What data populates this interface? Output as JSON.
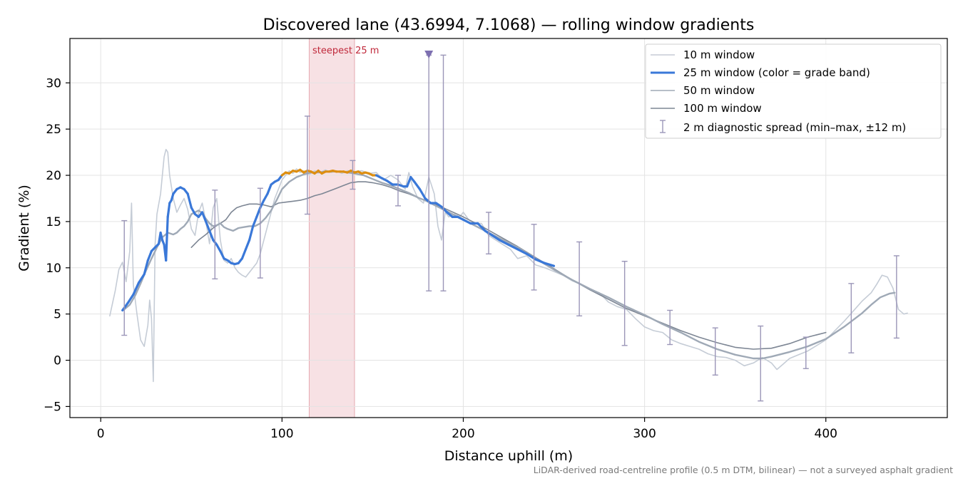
{
  "chart_data": {
    "type": "line",
    "title": "Discovered lane (43.6994, 7.1068) — rolling window gradients",
    "xlabel": "Distance uphill (m)",
    "ylabel": "Gradient (%)",
    "xlim": [
      -17,
      467
    ],
    "ylim": [
      -6.2,
      34.8
    ],
    "xticks": [
      0,
      100,
      200,
      300,
      400
    ],
    "yticks": [
      -5,
      0,
      5,
      10,
      15,
      20,
      25,
      30
    ],
    "grid": true,
    "legend_position": "top-right",
    "footnote": "LiDAR-derived road-centreline profile (0.5 m DTM, bilinear) — not a surveyed asphalt gradient",
    "colors": {
      "w10": "#c5ccd6",
      "w25": "#3a78d8",
      "w25_steep": "#dd8e10",
      "w50": "#9fa9b6",
      "w100": "#7d8694",
      "errbar": "#9b96b8",
      "band": "#f5dadd",
      "band_label": "#c0283a",
      "marker": "#7d6fb0"
    },
    "steepest_band": {
      "label": "steepest 25 m",
      "x_start": 115,
      "x_end": 140
    },
    "marker_point": {
      "x": 181,
      "y": 33.1
    },
    "series": [
      {
        "key": "w10",
        "name": "10 m window",
        "x": [
          5,
          8,
          10,
          12,
          14,
          16,
          17,
          18,
          20,
          22,
          24,
          26,
          27,
          28,
          29,
          30,
          31,
          33,
          34,
          35,
          36,
          37,
          38,
          40,
          42,
          44,
          46,
          48,
          50,
          52,
          54,
          56,
          58,
          60,
          62,
          64,
          66,
          68,
          70,
          72,
          74,
          76,
          78,
          80,
          82,
          84,
          86,
          88,
          90,
          92,
          94,
          96,
          98,
          100,
          102,
          104,
          106,
          108,
          110,
          112,
          115,
          118,
          121,
          124,
          127,
          130,
          133,
          136,
          140,
          144,
          148,
          152,
          156,
          160,
          164,
          168,
          170,
          172,
          175,
          178,
          181,
          184,
          186,
          188,
          190,
          192,
          195,
          198,
          200,
          203,
          206,
          210,
          214,
          218,
          222,
          226,
          230,
          235,
          240,
          245,
          250,
          255,
          260,
          265,
          270,
          275,
          280,
          285,
          290,
          295,
          300,
          305,
          310,
          315,
          320,
          325,
          330,
          335,
          340,
          345,
          350,
          355,
          360,
          365,
          370,
          373,
          376,
          380,
          385,
          390,
          395,
          400,
          405,
          410,
          415,
          420,
          425,
          428,
          431,
          434,
          437,
          440,
          443,
          445
        ],
        "y": [
          4.8,
          7.5,
          9.8,
          10.6,
          8.5,
          11.8,
          17.0,
          8.2,
          5.0,
          2.2,
          1.5,
          3.8,
          6.5,
          4.5,
          -2.3,
          12.5,
          15.8,
          18.0,
          20.0,
          22.0,
          22.8,
          22.5,
          20.0,
          17.5,
          16.0,
          16.8,
          17.5,
          16.3,
          14.2,
          13.5,
          16.0,
          17.0,
          15.0,
          12.6,
          16.5,
          17.5,
          13.0,
          10.8,
          10.5,
          11.0,
          10.0,
          9.5,
          9.2,
          9.0,
          9.5,
          10.0,
          10.5,
          11.5,
          13.0,
          14.5,
          16.0,
          17.5,
          18.5,
          19.5,
          20.0,
          20.5,
          20.2,
          20.7,
          20.3,
          20.5,
          20.1,
          20.5,
          20.3,
          20.6,
          20.3,
          20.5,
          20.2,
          20.5,
          20.4,
          20.5,
          20.2,
          20.3,
          19.5,
          20.0,
          19.5,
          18.5,
          20.3,
          18.8,
          17.5,
          17.0,
          19.8,
          18.0,
          14.5,
          13.0,
          16.0,
          15.5,
          15.8,
          15.5,
          16.0,
          15.2,
          14.8,
          14.8,
          13.5,
          13.0,
          12.5,
          12.0,
          11.0,
          11.3,
          10.3,
          10.0,
          9.6,
          9.2,
          8.6,
          8.2,
          7.6,
          7.3,
          6.3,
          5.8,
          5.5,
          4.5,
          3.6,
          3.2,
          3.0,
          2.2,
          1.8,
          1.5,
          1.2,
          0.7,
          0.4,
          0.3,
          0.0,
          -0.6,
          -0.3,
          0.3,
          -0.3,
          -1.0,
          -0.5,
          0.2,
          0.6,
          1.0,
          1.6,
          2.2,
          3.2,
          4.2,
          5.3,
          6.4,
          7.3,
          8.2,
          9.2,
          9.0,
          7.8,
          5.5,
          5.0,
          5.1
        ]
      },
      {
        "key": "w25",
        "name": "25 m window (color = grade band)",
        "x": [
          12,
          15,
          18,
          21,
          24,
          26,
          28,
          30,
          32,
          33,
          34,
          35,
          36,
          37,
          38,
          39,
          40,
          42,
          44,
          46,
          48,
          50,
          52,
          54,
          56,
          58,
          60,
          62,
          64,
          66,
          68,
          70,
          72,
          74,
          76,
          78,
          80,
          82,
          84,
          86,
          88,
          90,
          92,
          94,
          96,
          98,
          100,
          102,
          104,
          106,
          108,
          110,
          112,
          114,
          116,
          118,
          120,
          122,
          124,
          126,
          128,
          130,
          132,
          134,
          136,
          138,
          140,
          142,
          144,
          146,
          148,
          150,
          152,
          155,
          158,
          161,
          164,
          167,
          169,
          171,
          173,
          176,
          179,
          182,
          185,
          188,
          191,
          194,
          197,
          200,
          204,
          208,
          212,
          216,
          220,
          225,
          230,
          235,
          240,
          245,
          250
        ],
        "y": [
          5.4,
          6.2,
          7.1,
          8.4,
          9.3,
          10.8,
          11.8,
          12.2,
          12.6,
          13.8,
          13.0,
          12.5,
          10.8,
          15.5,
          17.0,
          17.3,
          18.0,
          18.5,
          18.7,
          18.5,
          18.0,
          16.5,
          15.8,
          15.5,
          16.0,
          15.0,
          14.0,
          13.0,
          12.5,
          11.8,
          11.0,
          10.8,
          10.5,
          10.4,
          10.5,
          11.0,
          12.0,
          13.0,
          14.5,
          15.5,
          16.5,
          17.3,
          18.0,
          19.0,
          19.3,
          19.5,
          20.0,
          20.3,
          20.2,
          20.5,
          20.4,
          20.6,
          20.3,
          20.5,
          20.4,
          20.2,
          20.5,
          20.2,
          20.4,
          20.4,
          20.5,
          20.4,
          20.4,
          20.4,
          20.3,
          20.5,
          20.3,
          20.4,
          20.2,
          20.3,
          20.2,
          20.0,
          20.0,
          19.7,
          19.4,
          19.0,
          19.0,
          18.8,
          18.8,
          19.8,
          19.3,
          18.5,
          17.5,
          17.0,
          17.0,
          16.6,
          16.0,
          15.5,
          15.5,
          15.2,
          14.8,
          14.8,
          14.0,
          13.5,
          13.0,
          12.5,
          12.0,
          11.5,
          10.9,
          10.5,
          10.2
        ]
      },
      {
        "key": "w50",
        "name": "50 m window",
        "x": [
          13,
          16,
          19,
          22,
          25,
          28,
          31,
          34,
          37,
          40,
          42,
          44,
          46,
          48,
          50,
          52,
          54,
          56,
          58,
          60,
          62,
          64,
          66,
          68,
          70,
          73,
          76,
          79,
          82,
          85,
          88,
          91,
          94,
          97,
          100,
          104,
          108,
          112,
          116,
          120,
          124,
          128,
          132,
          136,
          140,
          145,
          150,
          155,
          160,
          165,
          170,
          175,
          180,
          185,
          190,
          195,
          200,
          210,
          220,
          230,
          240,
          250,
          260,
          270,
          280,
          290,
          300,
          310,
          320,
          330,
          340,
          350,
          360,
          365,
          370,
          380,
          390,
          400,
          410,
          420,
          425,
          430,
          435,
          438
        ],
        "y": [
          5.5,
          6.0,
          7.0,
          8.3,
          9.7,
          11.0,
          12.2,
          13.3,
          13.8,
          13.6,
          13.8,
          14.2,
          14.5,
          15.0,
          15.8,
          16.0,
          16.2,
          15.9,
          15.3,
          14.8,
          14.5,
          14.6,
          14.8,
          14.4,
          14.2,
          14.0,
          14.3,
          14.4,
          14.5,
          14.5,
          14.8,
          15.4,
          16.2,
          17.3,
          18.5,
          19.3,
          19.8,
          20.1,
          20.3,
          20.3,
          20.4,
          20.4,
          20.4,
          20.3,
          20.2,
          20.0,
          19.6,
          19.2,
          18.9,
          18.5,
          18.1,
          17.6,
          17.2,
          16.7,
          16.2,
          15.7,
          15.2,
          14.2,
          13.2,
          12.2,
          11.0,
          9.8,
          8.7,
          7.7,
          6.8,
          5.8,
          4.9,
          3.9,
          3.0,
          2.0,
          1.2,
          0.6,
          0.2,
          0.2,
          0.4,
          0.9,
          1.5,
          2.3,
          3.6,
          5.1,
          6.0,
          6.8,
          7.2,
          7.3
        ]
      },
      {
        "key": "w100",
        "name": "100 m window",
        "x": [
          50,
          54,
          58,
          62,
          66,
          69,
          72,
          75,
          78,
          82,
          86,
          90,
          94,
          98,
          102,
          106,
          110,
          114,
          118,
          122,
          126,
          130,
          134,
          138,
          142,
          146,
          150,
          155,
          160,
          165,
          170,
          175,
          180,
          190,
          200,
          210,
          220,
          230,
          240,
          250,
          260,
          270,
          280,
          290,
          300,
          310,
          320,
          330,
          340,
          350,
          360,
          370,
          380,
          390,
          400
        ],
        "y": [
          12.2,
          13.0,
          13.6,
          14.3,
          14.8,
          15.2,
          16.0,
          16.5,
          16.7,
          16.9,
          16.9,
          16.8,
          16.6,
          17.0,
          17.1,
          17.2,
          17.3,
          17.5,
          17.8,
          18.0,
          18.3,
          18.6,
          18.9,
          19.2,
          19.3,
          19.3,
          19.2,
          19.0,
          18.7,
          18.3,
          18.0,
          17.6,
          17.2,
          16.4,
          15.5,
          14.5,
          13.4,
          12.3,
          11.1,
          9.9,
          8.7,
          7.6,
          6.6,
          5.6,
          4.8,
          4.0,
          3.2,
          2.5,
          1.9,
          1.4,
          1.2,
          1.3,
          1.8,
          2.5,
          3.0
        ]
      }
    ],
    "error_bars": {
      "name": "2 m diagnostic spread (min–max, ±12 m)",
      "x": [
        13,
        63,
        88,
        114,
        139,
        164,
        181,
        189,
        214,
        239,
        264,
        289,
        314,
        339,
        364,
        389,
        414,
        439
      ],
      "lo": [
        2.7,
        8.8,
        8.9,
        15.8,
        18.5,
        16.7,
        7.5,
        7.5,
        11.5,
        7.6,
        4.8,
        1.6,
        1.7,
        -1.6,
        -4.4,
        -0.9,
        0.8,
        2.4
      ],
      "hi": [
        15.1,
        18.4,
        18.6,
        26.4,
        21.6,
        20.0,
        33.0,
        33.0,
        16.0,
        14.7,
        12.8,
        10.7,
        5.4,
        3.5,
        3.7,
        2.5,
        8.3,
        11.3
      ]
    }
  }
}
